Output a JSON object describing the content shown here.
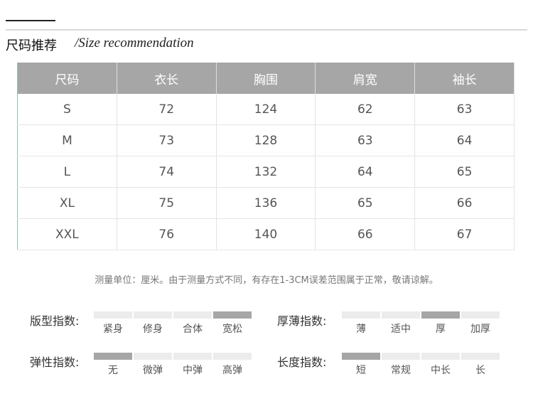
{
  "title": "尺码推荐",
  "subtitle": "/Size recommendation",
  "table": {
    "headers": [
      "尺码",
      "衣长",
      "胸围",
      "肩宽",
      "袖长"
    ],
    "rows": [
      [
        "S",
        "72",
        "124",
        "62",
        "63"
      ],
      [
        "M",
        "73",
        "128",
        "63",
        "64"
      ],
      [
        "L",
        "74",
        "132",
        "64",
        "65"
      ],
      [
        "XL",
        "75",
        "136",
        "65",
        "66"
      ],
      [
        "XXL",
        "76",
        "140",
        "66",
        "67"
      ]
    ]
  },
  "note": "测量单位：厘米。由于测量方式不同，有存在1-3CM误差范围属于正常，敬请谅解。",
  "colors": {
    "header": "#a6a6a6",
    "active": "#a6a6a6",
    "inactive": "#ececec"
  },
  "indices": [
    {
      "label": "版型指数:",
      "options": [
        "紧身",
        "修身",
        "合体",
        "宽松"
      ],
      "selected": 3
    },
    {
      "label": "厚薄指数:",
      "options": [
        "薄",
        "适中",
        "厚",
        "加厚"
      ],
      "selected": 2
    },
    {
      "label": "弹性指数:",
      "options": [
        "无",
        "微弹",
        "中弹",
        "高弹"
      ],
      "selected": 0
    },
    {
      "label": "长度指数:",
      "options": [
        "短",
        "常规",
        "中长",
        "长"
      ],
      "selected": 0
    }
  ]
}
